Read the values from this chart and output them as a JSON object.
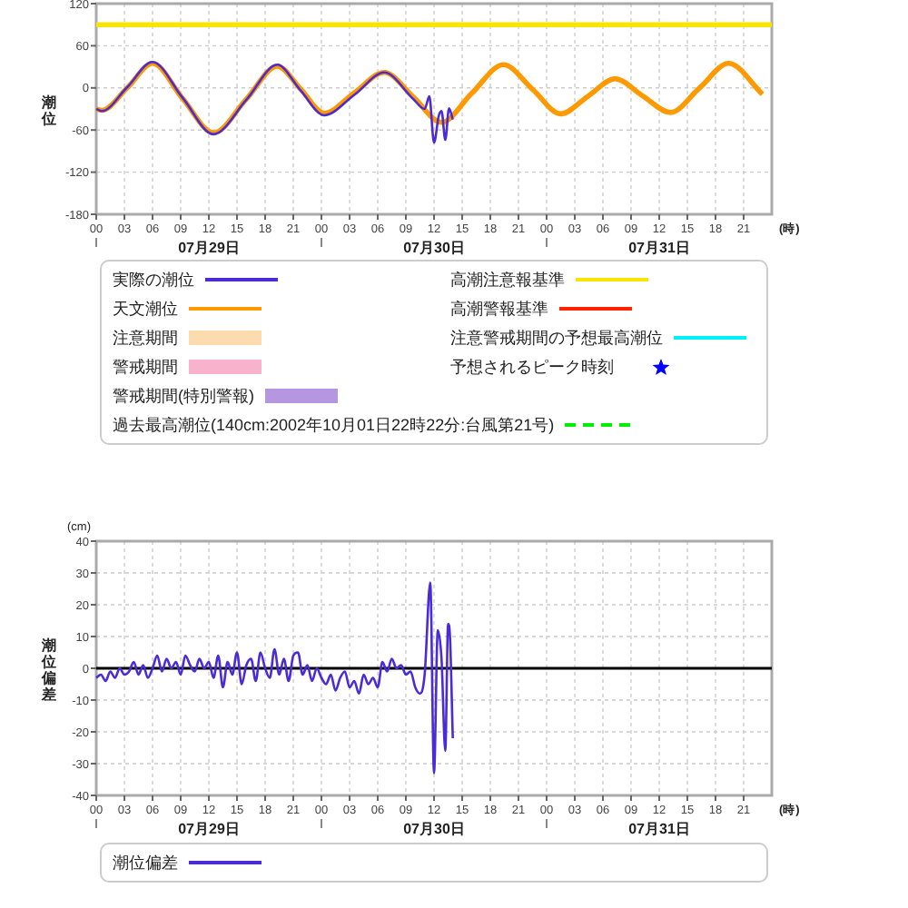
{
  "chart_data": [
    {
      "type": "line",
      "ylabel": "潮位",
      "xlabel": "(時)",
      "grid": true,
      "legend": "bottom",
      "annotations": [
        "07月29日",
        "07月30日",
        "07月31日"
      ],
      "xlim": [
        0,
        72
      ],
      "xticks": [
        {
          "value": 0,
          "label": "00"
        },
        {
          "value": 3,
          "label": "03"
        },
        {
          "value": 6,
          "label": "06"
        },
        {
          "value": 9,
          "label": "09"
        },
        {
          "value": 12,
          "label": "12"
        },
        {
          "value": 15,
          "label": "15"
        },
        {
          "value": 18,
          "label": "18"
        },
        {
          "value": 21,
          "label": "21"
        },
        {
          "value": 24,
          "label": "00"
        },
        {
          "value": 27,
          "label": "03"
        },
        {
          "value": 30,
          "label": "06"
        },
        {
          "value": 33,
          "label": "09"
        },
        {
          "value": 36,
          "label": "12"
        },
        {
          "value": 39,
          "label": "15"
        },
        {
          "value": 42,
          "label": "18"
        },
        {
          "value": 45,
          "label": "21"
        },
        {
          "value": 48,
          "label": "00"
        },
        {
          "value": 51,
          "label": "03"
        },
        {
          "value": 54,
          "label": "06"
        },
        {
          "value": 57,
          "label": "09"
        },
        {
          "value": 60,
          "label": "12"
        },
        {
          "value": 63,
          "label": "15"
        },
        {
          "value": 66,
          "label": "18"
        },
        {
          "value": 69,
          "label": "21"
        }
      ],
      "ylim": [
        -180,
        120
      ],
      "yticks": [
        -180,
        -120,
        -60,
        0,
        60,
        120
      ],
      "series": [
        {
          "name": "実際の潮位",
          "color": "#4b2bd6",
          "type": "line",
          "x": [
            0,
            0.6,
            3.3,
            6,
            9.2,
            12.5,
            16,
            19.3,
            21.8,
            24.3,
            27.5,
            30.7,
            33.8,
            35,
            35.5,
            36,
            36.5,
            36.8,
            37.2,
            37.6,
            38
          ],
          "values": [
            -30,
            -33,
            1,
            37,
            -14,
            -66,
            -17,
            33,
            -4,
            -39,
            -10,
            22,
            -16,
            -30,
            -12,
            -78,
            -40,
            -33,
            -74,
            -29,
            -45
          ]
        },
        {
          "name": "天文潮位",
          "color": "#ff9900",
          "type": "line",
          "x": [
            0,
            0.6,
            3.3,
            6,
            9.2,
            12.5,
            16,
            19.3,
            21.8,
            24.3,
            27.5,
            30.7,
            33.8,
            36.8,
            40,
            43.4,
            46.5,
            49.5,
            52.4,
            55.3,
            58.2,
            61.2,
            64.3,
            67.4,
            71
          ],
          "values": [
            -30,
            -32,
            0,
            35,
            -15,
            -64,
            -16,
            31,
            -2,
            -36,
            -7,
            22,
            -13,
            -49,
            -8,
            33,
            -2,
            -37,
            -12,
            13,
            -11,
            -35,
            0,
            35,
            -9
          ]
        },
        {
          "name": "注意期間",
          "color": "#fcdcae",
          "type": "area"
        },
        {
          "name": "警戒期間",
          "color": "#f9b2cc",
          "type": "area"
        },
        {
          "name": "警戒期間(特別警報)",
          "color": "#b497e0",
          "type": "area"
        },
        {
          "name": "高潮注意報基準",
          "color": "#f7e400",
          "type": "line",
          "x": [
            0,
            72
          ],
          "values": [
            90,
            90
          ]
        },
        {
          "name": "高潮警報基準",
          "color": "#ff2200",
          "type": "line"
        },
        {
          "name": "注意警戒期間の予想最高潮位",
          "color": "#00f0ff",
          "type": "line"
        },
        {
          "name": "予想されるピーク時刻",
          "color": "#0000ff",
          "type": "scatter",
          "marker": "star"
        },
        {
          "name": "過去最高潮位(140cm:2002年10月01日22時22分:台風第21号)",
          "color": "#00ee00",
          "type": "line",
          "line_style": "dashed"
        }
      ]
    },
    {
      "type": "line",
      "ylabel": "潮位偏差",
      "subtitle": "(cm)",
      "xlabel": "(時)",
      "grid": true,
      "legend": "bottom",
      "annotations": [
        "07月29日",
        "07月30日",
        "07月31日"
      ],
      "xlim": [
        0,
        72
      ],
      "xticks": [
        {
          "value": 0,
          "label": "00"
        },
        {
          "value": 3,
          "label": "03"
        },
        {
          "value": 6,
          "label": "06"
        },
        {
          "value": 9,
          "label": "09"
        },
        {
          "value": 12,
          "label": "12"
        },
        {
          "value": 15,
          "label": "15"
        },
        {
          "value": 18,
          "label": "18"
        },
        {
          "value": 21,
          "label": "21"
        },
        {
          "value": 24,
          "label": "00"
        },
        {
          "value": 27,
          "label": "03"
        },
        {
          "value": 30,
          "label": "06"
        },
        {
          "value": 33,
          "label": "09"
        },
        {
          "value": 36,
          "label": "12"
        },
        {
          "value": 39,
          "label": "15"
        },
        {
          "value": 42,
          "label": "18"
        },
        {
          "value": 45,
          "label": "21"
        },
        {
          "value": 48,
          "label": "00"
        },
        {
          "value": 51,
          "label": "03"
        },
        {
          "value": 54,
          "label": "06"
        },
        {
          "value": 57,
          "label": "09"
        },
        {
          "value": 60,
          "label": "12"
        },
        {
          "value": 63,
          "label": "15"
        },
        {
          "value": 66,
          "label": "18"
        },
        {
          "value": 69,
          "label": "21"
        }
      ],
      "ylim": [
        -40,
        40
      ],
      "yticks": [
        -40,
        -30,
        -20,
        -10,
        0,
        10,
        20,
        30,
        40
      ],
      "ref_lines": [
        {
          "axis": "y",
          "value": 0,
          "color": "#000000"
        }
      ],
      "series": [
        {
          "name": "潮位偏差",
          "color": "#4b2bd6",
          "x": [
            0,
            0.5,
            1,
            1.5,
            2,
            2.5,
            3,
            3.5,
            4,
            4.5,
            5,
            5.5,
            6,
            6.5,
            7,
            7.5,
            8,
            8.5,
            9,
            9.5,
            10,
            10.5,
            11,
            11.5,
            12,
            12.5,
            13,
            13.5,
            14,
            14.5,
            15,
            15.5,
            16,
            16.5,
            17,
            17.5,
            18,
            18.5,
            19,
            19.5,
            20,
            20.5,
            21,
            21.5,
            22,
            22.5,
            23,
            23.5,
            24,
            24.5,
            25,
            25.5,
            26,
            26.5,
            27,
            27.5,
            28,
            28.5,
            29,
            29.5,
            30,
            30.5,
            31,
            31.5,
            32,
            32.5,
            33,
            33.5,
            34,
            34.5,
            35,
            35.6,
            36,
            36.4,
            36.8,
            37.2,
            37.5,
            37.7,
            38
          ],
          "values": [
            -3,
            -2,
            -4,
            -1,
            -3,
            0,
            -2,
            -1,
            2,
            -2,
            1,
            -3,
            0,
            4,
            -1,
            3,
            0,
            2,
            -2,
            4,
            1,
            -1,
            3,
            0,
            2,
            -3,
            4,
            -6,
            2,
            -2,
            5,
            -5,
            1,
            3,
            -4,
            5,
            0,
            -3,
            6,
            -2,
            3,
            -4,
            4,
            5,
            -2,
            1,
            -4,
            0,
            -3,
            -5,
            -2,
            -7,
            -3,
            -1,
            -6,
            -4,
            -8,
            -2,
            -5,
            -3,
            -6,
            2,
            -1,
            3,
            0,
            1,
            -2,
            -1,
            -6,
            -8,
            -2,
            27,
            -33,
            12,
            3,
            -26,
            14,
            10,
            -22
          ]
        }
      ]
    }
  ]
}
